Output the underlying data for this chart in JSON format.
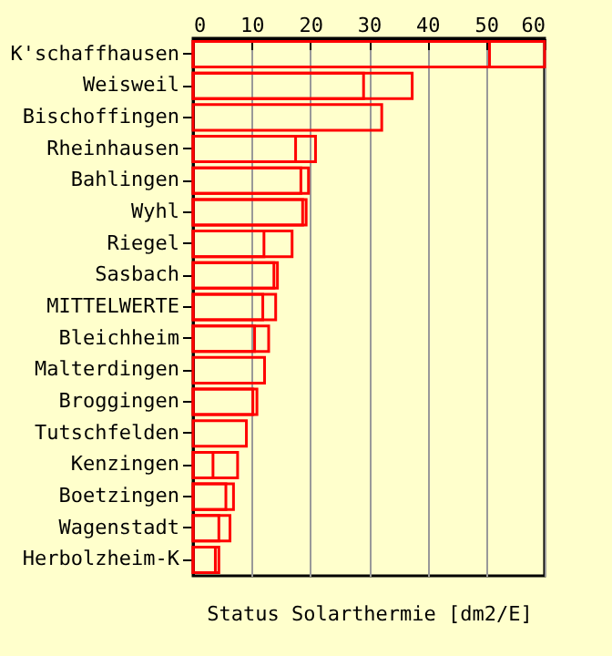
{
  "chart_data": {
    "type": "bar",
    "orientation": "horizontal",
    "xlabel": "Status Solarthermie [dm2/E]",
    "categories": [
      "K'schaffhausen",
      "Weisweil",
      "Bischoffingen",
      "Rheinhausen",
      "Bahlingen",
      "Wyhl",
      "Riegel",
      "Sasbach",
      "MITTELWERTE",
      "Bleichheim",
      "Malterdingen",
      "Broggingen",
      "Tutschfelden",
      "Kenzingen",
      "Boetzingen",
      "Wagenstadt",
      "Herbolzheim-K"
    ],
    "series": [
      {
        "color": "#ff0000",
        "values": [
          60,
          37.4,
          32.2,
          20.9,
          19.7,
          19.3,
          16.9,
          14.4,
          14.1,
          12.9,
          12.2,
          10.9,
          9.1,
          7.6,
          6.9,
          6.3,
          4.4
        ]
      },
      {
        "color": "#ff0000",
        "values": [
          50.6,
          29.1,
          null,
          17.5,
          18.4,
          18.7,
          12.1,
          13.8,
          11.9,
          10.5,
          null,
          10.2,
          null,
          3.4,
          5.6,
          4.4,
          3.8
        ]
      }
    ],
    "xlim": [
      0,
      60
    ],
    "xticks": [
      0,
      10,
      20,
      30,
      40,
      50,
      60
    ],
    "grid": "x",
    "legend": false
  }
}
